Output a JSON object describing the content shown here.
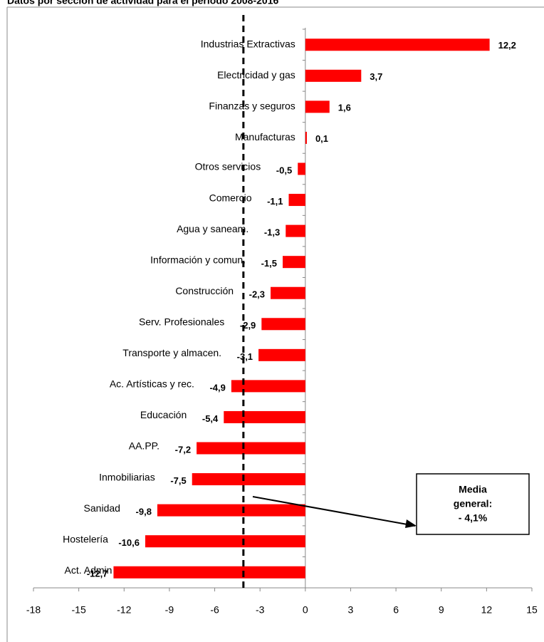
{
  "chart_data": {
    "type": "barh",
    "title": "Datos por sección de actividad para el periodo 2008-2016",
    "categories": [
      "Industrias Extractivas",
      "Electricidad y gas",
      "Finanzas y seguros",
      "Manufacturas",
      "Otros servicios",
      "Comercio",
      "Agua y saneam.",
      "Información y comun.",
      "Construcción",
      "Serv. Profesionales",
      "Transporte y almacen.",
      "Ac. Artísticas y rec.",
      "Educación",
      "AA.PP.",
      "Inmobiliarias",
      "Sanidad",
      "Hostelería",
      "Act. Admin"
    ],
    "values": [
      12.2,
      3.7,
      1.6,
      0.1,
      -0.5,
      -1.1,
      -1.3,
      -1.5,
      -2.3,
      -2.9,
      -3.1,
      -4.9,
      -5.4,
      -7.2,
      -7.5,
      -9.8,
      -10.6,
      -12.7
    ],
    "value_labels": [
      "12,2",
      "3,7",
      "1,6",
      "0,1",
      "-0,5",
      "-1,1",
      "-1,3",
      "-1,5",
      "-2,3",
      "-2,9",
      "-3,1",
      "-4,9",
      "-5,4",
      "-7,2",
      "-7,5",
      "-9,8",
      "-10,6",
      "-12,7"
    ],
    "color": "#ff0000",
    "xlim": [
      -18,
      15
    ],
    "xticks": [
      -18,
      -15,
      -12,
      -9,
      -6,
      -3,
      0,
      3,
      6,
      9,
      12,
      15
    ],
    "mean": {
      "value": -4.1,
      "label": [
        "Media",
        "general:",
        "- 4,1%"
      ]
    }
  }
}
